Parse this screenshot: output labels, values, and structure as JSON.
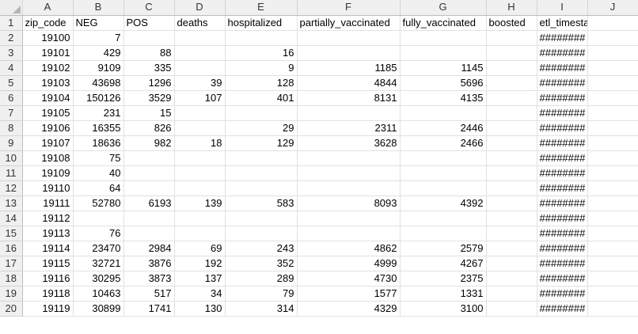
{
  "columns": [
    "A",
    "B",
    "C",
    "D",
    "E",
    "F",
    "G",
    "H",
    "I",
    "J"
  ],
  "rows": [
    {
      "n": "1",
      "cells": [
        "zip_code",
        "NEG",
        "POS",
        "deaths",
        "hospitalized",
        "partially_vaccinated",
        "fully_vaccinated",
        "boosted",
        "etl_timestamp",
        ""
      ]
    },
    {
      "n": "2",
      "cells": [
        "19100",
        "7",
        "",
        "",
        "",
        "",
        "",
        "",
        "########",
        ""
      ]
    },
    {
      "n": "3",
      "cells": [
        "19101",
        "429",
        "88",
        "",
        "16",
        "",
        "",
        "",
        "########",
        ""
      ]
    },
    {
      "n": "4",
      "cells": [
        "19102",
        "9109",
        "335",
        "",
        "9",
        "1185",
        "1145",
        "",
        "########",
        ""
      ]
    },
    {
      "n": "5",
      "cells": [
        "19103",
        "43698",
        "1296",
        "39",
        "128",
        "4844",
        "5696",
        "",
        "########",
        ""
      ]
    },
    {
      "n": "6",
      "cells": [
        "19104",
        "150126",
        "3529",
        "107",
        "401",
        "8131",
        "4135",
        "",
        "########",
        ""
      ]
    },
    {
      "n": "7",
      "cells": [
        "19105",
        "231",
        "15",
        "",
        "",
        "",
        "",
        "",
        "########",
        ""
      ]
    },
    {
      "n": "8",
      "cells": [
        "19106",
        "16355",
        "826",
        "",
        "29",
        "2311",
        "2446",
        "",
        "########",
        ""
      ]
    },
    {
      "n": "9",
      "cells": [
        "19107",
        "18636",
        "982",
        "18",
        "129",
        "3628",
        "2466",
        "",
        "########",
        ""
      ]
    },
    {
      "n": "10",
      "cells": [
        "19108",
        "75",
        "",
        "",
        "",
        "",
        "",
        "",
        "########",
        ""
      ]
    },
    {
      "n": "11",
      "cells": [
        "19109",
        "40",
        "",
        "",
        "",
        "",
        "",
        "",
        "########",
        ""
      ]
    },
    {
      "n": "12",
      "cells": [
        "19110",
        "64",
        "",
        "",
        "",
        "",
        "",
        "",
        "########",
        ""
      ]
    },
    {
      "n": "13",
      "cells": [
        "19111",
        "52780",
        "6193",
        "139",
        "583",
        "8093",
        "4392",
        "",
        "########",
        ""
      ]
    },
    {
      "n": "14",
      "cells": [
        "19112",
        "",
        "",
        "",
        "",
        "",
        "",
        "",
        "########",
        ""
      ]
    },
    {
      "n": "15",
      "cells": [
        "19113",
        "76",
        "",
        "",
        "",
        "",
        "",
        "",
        "########",
        ""
      ]
    },
    {
      "n": "16",
      "cells": [
        "19114",
        "23470",
        "2984",
        "69",
        "243",
        "4862",
        "2579",
        "",
        "########",
        ""
      ]
    },
    {
      "n": "17",
      "cells": [
        "19115",
        "32721",
        "3876",
        "192",
        "352",
        "4999",
        "4267",
        "",
        "########",
        ""
      ]
    },
    {
      "n": "18",
      "cells": [
        "19116",
        "30295",
        "3873",
        "137",
        "289",
        "4730",
        "2375",
        "",
        "########",
        ""
      ]
    },
    {
      "n": "19",
      "cells": [
        "19118",
        "10463",
        "517",
        "34",
        "79",
        "1577",
        "1331",
        "",
        "########",
        ""
      ]
    },
    {
      "n": "20",
      "cells": [
        "19119",
        "30899",
        "1741",
        "130",
        "314",
        "4329",
        "3100",
        "",
        "########",
        ""
      ]
    }
  ]
}
